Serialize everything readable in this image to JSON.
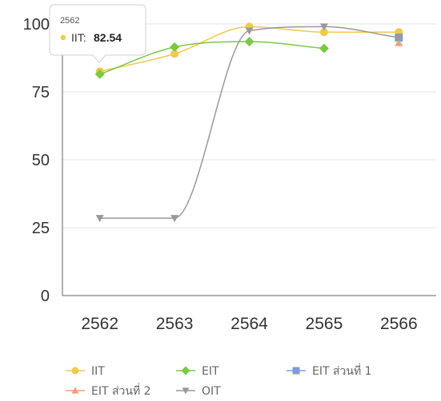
{
  "chart_data": {
    "type": "line",
    "categories": [
      "2562",
      "2563",
      "2564",
      "2565",
      "2566"
    ],
    "ylim": [
      0,
      100
    ],
    "yticks": [
      0,
      25,
      50,
      75,
      100
    ],
    "grid": true,
    "legend_position": "bottom",
    "series": [
      {
        "name": "IIT",
        "color": "#f2c94c",
        "marker": "circle",
        "curve": "smooth",
        "values": [
          82.54,
          89,
          99,
          97,
          97
        ]
      },
      {
        "name": "EIT",
        "color": "#7ac943",
        "marker": "diamond",
        "curve": "smooth",
        "values": [
          81.5,
          91.5,
          93.5,
          91,
          null
        ]
      },
      {
        "name": "EIT ส่วนที่ 1",
        "color": "#7f9fd4",
        "marker": "square",
        "curve": "smooth",
        "values": [
          null,
          null,
          null,
          null,
          95
        ]
      },
      {
        "name": "EIT ส่วนที่ 2",
        "color": "#f0a07a",
        "marker": "triangle-up",
        "curve": "smooth",
        "values": [
          null,
          null,
          null,
          null,
          93
        ]
      },
      {
        "name": "OIT",
        "color": "#999999",
        "marker": "triangle-down",
        "curve": "smooth",
        "values": [
          28.5,
          28.5,
          97.5,
          99,
          95
        ]
      }
    ],
    "tooltip": {
      "category": "2562",
      "series": "IIT",
      "label": "IIT:",
      "value": "82.54",
      "color": "#f2c94c"
    }
  }
}
